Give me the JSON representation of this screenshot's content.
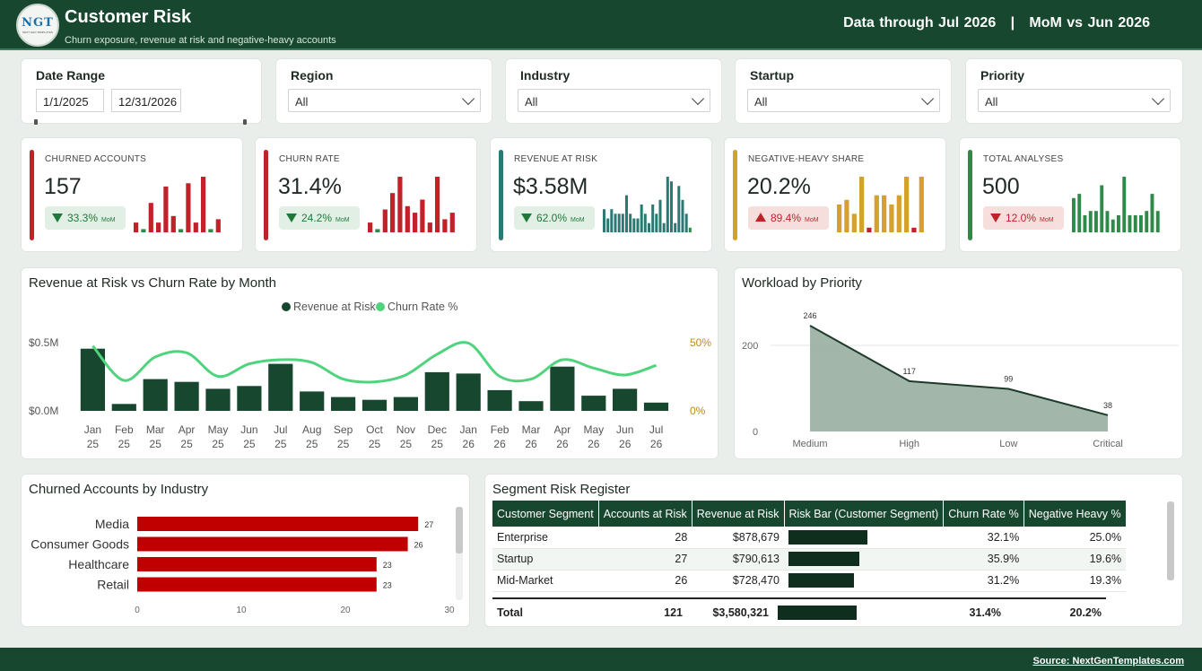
{
  "header": {
    "logo_text": "NGT",
    "logo_sub": "NEXT GEN TEMPLATES",
    "title": "Customer Risk",
    "subtitle": "Churn exposure, revenue at risk and negative-heavy accounts",
    "data_through": "Data through Jul 2026",
    "separator": "|",
    "mom_vs": "MoM vs Jun 2026"
  },
  "filters": {
    "date_range": {
      "label": "Date Range",
      "start": "1/1/2025",
      "end": "12/31/2026"
    },
    "region": {
      "label": "Region",
      "value": "All"
    },
    "industry": {
      "label": "Industry",
      "value": "All"
    },
    "startup": {
      "label": "Startup",
      "value": "All"
    },
    "priority": {
      "label": "Priority",
      "value": "All"
    }
  },
  "kpis": [
    {
      "label": "CHURNED ACCOUNTS",
      "value": "157",
      "change": "33.3%",
      "mom": "MoM",
      "direction": "down",
      "sentiment": "good",
      "color": "#c0222a",
      "spark": [
        3,
        1,
        9,
        3,
        14,
        5,
        1,
        15,
        3,
        17,
        1,
        4
      ]
    },
    {
      "label": "CHURN RATE",
      "value": "31.4%",
      "change": "24.2%",
      "mom": "MoM",
      "direction": "down",
      "sentiment": "good",
      "color": "#c0222a",
      "spark": [
        3,
        1,
        7,
        12,
        17,
        8,
        6,
        10,
        3,
        17,
        4,
        6
      ]
    },
    {
      "label": "REVENUE AT RISK",
      "value": "$3.58M",
      "change": "62.0%",
      "mom": "MoM",
      "direction": "down",
      "sentiment": "good",
      "color": "#2a7a73",
      "spark": [
        5,
        3,
        5,
        4,
        4,
        4,
        8,
        4,
        3,
        3,
        6,
        4,
        2,
        6,
        4,
        7,
        2,
        12,
        11,
        2,
        10,
        7,
        4,
        1
      ]
    },
    {
      "label": "NEGATIVE-HEAVY SHARE",
      "value": "20.2%",
      "change": "89.4%",
      "mom": "MoM",
      "direction": "up",
      "sentiment": "bad",
      "color": "#d4a02e",
      "spark": [
        6,
        7,
        4,
        12,
        1,
        8,
        8,
        6,
        8,
        12,
        1,
        12
      ]
    },
    {
      "label": "TOTAL ANALYSES",
      "value": "500",
      "change": "12.0%",
      "mom": "MoM",
      "direction": "down",
      "sentiment": "bad",
      "color": "#2f8a4a",
      "spark": [
        8,
        9,
        4,
        5,
        5,
        11,
        5,
        3,
        4,
        13,
        4,
        4,
        4,
        5,
        9,
        5
      ]
    }
  ],
  "combo_chart": {
    "title": "Revenue at Risk vs Churn Rate by Month",
    "legend": [
      "Revenue at Risk",
      "Churn Rate %"
    ],
    "left_axis_labels": [
      "$0.5M",
      "$0.0M"
    ],
    "right_axis_labels": [
      "50%",
      "0%"
    ],
    "bar_color": "#17472f",
    "line_color": "#4fd47d",
    "right_axis_color": "#c08a18"
  },
  "chart_data": [
    {
      "type": "bar",
      "title": "Revenue at Risk vs Churn Rate by Month",
      "categories": [
        "Jan 25",
        "Feb 25",
        "Mar 25",
        "Apr 25",
        "May 25",
        "Jun 25",
        "Jul 25",
        "Aug 25",
        "Sep 25",
        "Oct 25",
        "Nov 25",
        "Dec 25",
        "Jan 26",
        "Feb 26",
        "Mar 26",
        "Apr 26",
        "May 26",
        "Jun 26",
        "Jul 26"
      ],
      "series": [
        {
          "name": "Revenue at Risk",
          "axis": "left",
          "values": [
            0.45,
            0.05,
            0.23,
            0.21,
            0.16,
            0.18,
            0.34,
            0.14,
            0.1,
            0.08,
            0.1,
            0.28,
            0.27,
            0.15,
            0.07,
            0.32,
            0.11,
            0.16,
            0.06
          ]
        },
        {
          "name": "Churn Rate %",
          "axis": "right",
          "type": "line",
          "values": [
            47,
            22,
            39,
            42,
            25,
            34,
            37,
            35,
            23,
            21,
            26,
            41,
            49,
            25,
            23,
            37,
            31,
            26,
            33
          ]
        }
      ],
      "ylim_left": [
        0,
        0.5
      ],
      "ylim_right": [
        0,
        50
      ],
      "legend": "top-center"
    },
    {
      "type": "area",
      "title": "Workload by Priority",
      "categories": [
        "Medium",
        "High",
        "Low",
        "Critical"
      ],
      "values": [
        246,
        117,
        99,
        38
      ],
      "y_ticks": [
        "200",
        "0"
      ],
      "ylim": [
        0,
        260
      ]
    },
    {
      "type": "bar",
      "orientation": "horizontal",
      "title": "Churned Accounts by Industry",
      "categories": [
        "Media",
        "Consumer Goods",
        "Healthcare",
        "Retail"
      ],
      "values": [
        27,
        26,
        23,
        23
      ],
      "x_ticks": [
        "0",
        "10",
        "20",
        "30"
      ],
      "xlim": [
        0,
        30
      ]
    }
  ],
  "area_chart": {
    "title": "Workload by Priority",
    "fill": "#9db3a4",
    "stroke": "#1d3a2a"
  },
  "hbar_chart": {
    "title": "Churned Accounts by Industry",
    "bar_color": "#c00000"
  },
  "table": {
    "title": "Segment Risk Register",
    "columns": [
      "Customer Segment",
      "Accounts at Risk",
      "Revenue at Risk",
      "Risk Bar (Customer Segment)",
      "Churn Rate %",
      "Negative Heavy %"
    ],
    "rows": [
      {
        "segment": "Enterprise",
        "accounts": "28",
        "revenue": "$878,679",
        "bar": 1.0,
        "churn": "32.1%",
        "neg": "25.0%"
      },
      {
        "segment": "Startup",
        "accounts": "27",
        "revenue": "$790,613",
        "bar": 0.9,
        "churn": "35.9%",
        "neg": "19.6%"
      },
      {
        "segment": "Mid-Market",
        "accounts": "26",
        "revenue": "$728,470",
        "bar": 0.83,
        "churn": "31.2%",
        "neg": "19.3%"
      }
    ],
    "total": {
      "label": "Total",
      "accounts": "121",
      "revenue": "$3,580,321",
      "churn": "31.4%",
      "neg": "20.2%"
    }
  },
  "footer": {
    "source": "Source: NextGenTemplates.com"
  }
}
